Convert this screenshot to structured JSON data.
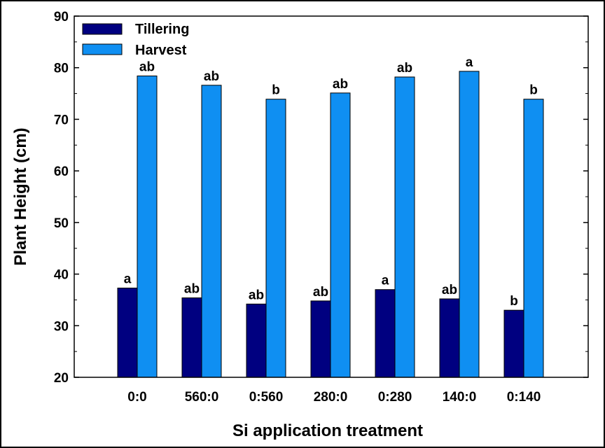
{
  "chart_data": {
    "type": "bar",
    "xlabel": "Si application treatment",
    "ylabel": "Plant Height (cm)",
    "ylim": [
      20,
      90
    ],
    "yticks": [
      20,
      30,
      40,
      50,
      60,
      70,
      80,
      90
    ],
    "categories": [
      "0:0",
      "560:0",
      "0:560",
      "280:0",
      "0:280",
      "140:0",
      "0:140"
    ],
    "legend_position": "top-left",
    "grid": false,
    "series": [
      {
        "name": "Tillering",
        "color": "#000080",
        "values": [
          37.3,
          35.4,
          34.2,
          34.8,
          37.0,
          35.2,
          33.0
        ],
        "labels": [
          "a",
          "ab",
          "ab",
          "ab",
          "a",
          "ab",
          "b"
        ]
      },
      {
        "name": "Harvest",
        "color": "#0f8ff2",
        "values": [
          78.4,
          76.6,
          73.9,
          75.1,
          78.2,
          79.3,
          73.9
        ],
        "labels": [
          "ab",
          "ab",
          "b",
          "ab",
          "ab",
          "a",
          "b"
        ]
      }
    ]
  }
}
